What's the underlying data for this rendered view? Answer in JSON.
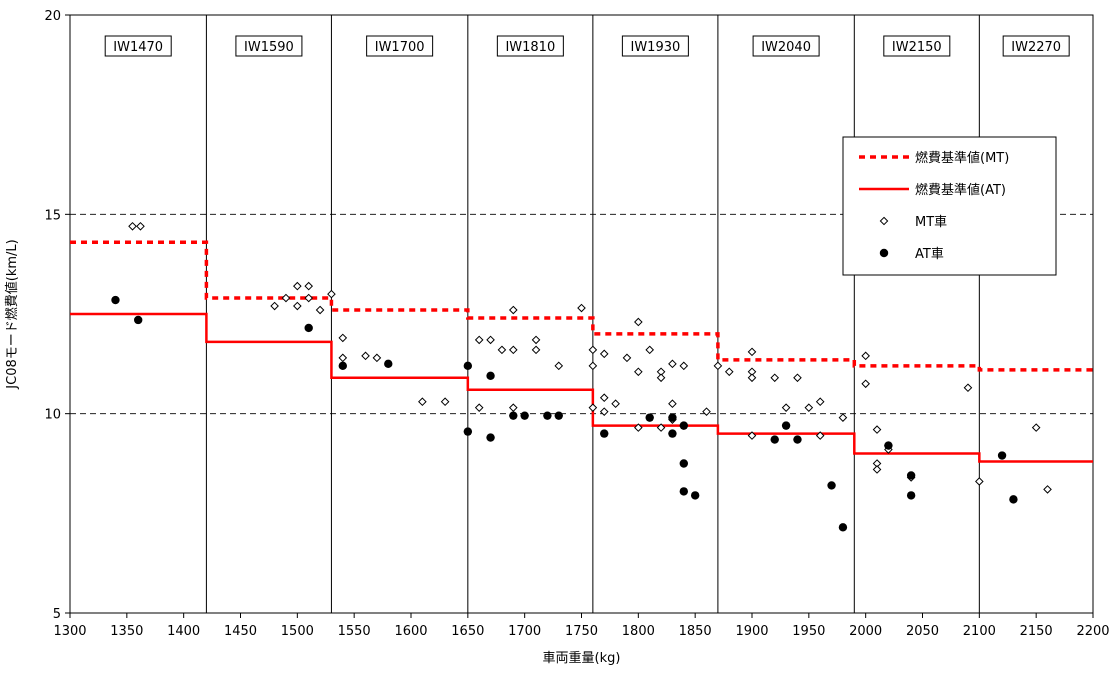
{
  "chart_data": {
    "type": "scatter",
    "xlabel": "車両重量(kg)",
    "ylabel": "JC08モード燃費値(km/L)",
    "xlim": [
      1300,
      2200
    ],
    "ylim": [
      5,
      20
    ],
    "x_ticks": [
      1300,
      1350,
      1400,
      1450,
      1500,
      1550,
      1600,
      1650,
      1700,
      1750,
      1800,
      1850,
      1900,
      1950,
      2000,
      2050,
      2100,
      2150,
      2200
    ],
    "y_ticks": [
      5,
      10,
      15,
      20
    ],
    "y_gridlines": [
      10,
      15
    ],
    "grid_style": "dashed",
    "legend_position": "right",
    "inertia_classes": [
      {
        "label": "IW1470",
        "from": 1300,
        "to": 1420
      },
      {
        "label": "IW1590",
        "from": 1420,
        "to": 1530
      },
      {
        "label": "IW1700",
        "from": 1530,
        "to": 1650
      },
      {
        "label": "IW1810",
        "from": 1650,
        "to": 1760
      },
      {
        "label": "IW1930",
        "from": 1760,
        "to": 1870
      },
      {
        "label": "IW2040",
        "from": 1870,
        "to": 1990
      },
      {
        "label": "IW2150",
        "from": 1990,
        "to": 2100
      },
      {
        "label": "IW2270",
        "from": 2100,
        "to": 2200
      }
    ],
    "series": [
      {
        "name": "燃費基準値(MT)",
        "kind": "step",
        "color": "#ff0000",
        "dash": true,
        "steps": [
          {
            "from": 1300,
            "to": 1420,
            "y": 14.3
          },
          {
            "from": 1420,
            "to": 1530,
            "y": 12.9
          },
          {
            "from": 1530,
            "to": 1650,
            "y": 12.6
          },
          {
            "from": 1650,
            "to": 1760,
            "y": 12.4
          },
          {
            "from": 1760,
            "to": 1870,
            "y": 12.0
          },
          {
            "from": 1870,
            "to": 1990,
            "y": 11.35
          },
          {
            "from": 1990,
            "to": 2100,
            "y": 11.2
          },
          {
            "from": 2100,
            "to": 2200,
            "y": 11.1
          }
        ]
      },
      {
        "name": "燃費基準値(AT)",
        "kind": "step",
        "color": "#ff0000",
        "dash": false,
        "steps": [
          {
            "from": 1300,
            "to": 1420,
            "y": 12.5
          },
          {
            "from": 1420,
            "to": 1530,
            "y": 11.8
          },
          {
            "from": 1530,
            "to": 1650,
            "y": 10.9
          },
          {
            "from": 1650,
            "to": 1760,
            "y": 10.6
          },
          {
            "from": 1760,
            "to": 1870,
            "y": 9.7
          },
          {
            "from": 1870,
            "to": 1990,
            "y": 9.5
          },
          {
            "from": 1990,
            "to": 2100,
            "y": 9.0
          },
          {
            "from": 2100,
            "to": 2200,
            "y": 8.8
          }
        ]
      },
      {
        "name": "MT車",
        "kind": "scatter",
        "marker": "diamond-open",
        "points": [
          [
            1355,
            14.7
          ],
          [
            1362,
            14.7
          ],
          [
            1480,
            12.7
          ],
          [
            1490,
            12.9
          ],
          [
            1500,
            13.2
          ],
          [
            1510,
            13.2
          ],
          [
            1500,
            12.7
          ],
          [
            1510,
            12.9
          ],
          [
            1520,
            12.6
          ],
          [
            1530,
            13.0
          ],
          [
            1540,
            11.9
          ],
          [
            1540,
            11.4
          ],
          [
            1560,
            11.45
          ],
          [
            1570,
            11.4
          ],
          [
            1610,
            10.3
          ],
          [
            1630,
            10.3
          ],
          [
            1660,
            11.85
          ],
          [
            1670,
            11.85
          ],
          [
            1680,
            11.6
          ],
          [
            1690,
            11.6
          ],
          [
            1710,
            11.6
          ],
          [
            1710,
            11.85
          ],
          [
            1690,
            12.6
          ],
          [
            1660,
            10.15
          ],
          [
            1690,
            10.15
          ],
          [
            1730,
            11.2
          ],
          [
            1750,
            12.65
          ],
          [
            1760,
            11.6
          ],
          [
            1760,
            11.2
          ],
          [
            1770,
            11.5
          ],
          [
            1770,
            10.4
          ],
          [
            1780,
            10.25
          ],
          [
            1770,
            10.05
          ],
          [
            1760,
            10.15
          ],
          [
            1790,
            11.4
          ],
          [
            1800,
            11.05
          ],
          [
            1800,
            12.3
          ],
          [
            1800,
            9.65
          ],
          [
            1810,
            11.6
          ],
          [
            1820,
            11.05
          ],
          [
            1820,
            10.9
          ],
          [
            1830,
            11.25
          ],
          [
            1820,
            9.65
          ],
          [
            1830,
            10.25
          ],
          [
            1830,
            9.85
          ],
          [
            1840,
            11.2
          ],
          [
            1840,
            9.7
          ],
          [
            1860,
            10.05
          ],
          [
            1870,
            11.2
          ],
          [
            1880,
            11.05
          ],
          [
            1900,
            11.55
          ],
          [
            1900,
            11.05
          ],
          [
            1900,
            10.9
          ],
          [
            1900,
            9.45
          ],
          [
            1920,
            10.9
          ],
          [
            1930,
            10.15
          ],
          [
            1940,
            10.9
          ],
          [
            1950,
            10.15
          ],
          [
            1960,
            10.3
          ],
          [
            1960,
            9.45
          ],
          [
            1980,
            9.9
          ],
          [
            2000,
            11.45
          ],
          [
            2000,
            10.75
          ],
          [
            2010,
            9.6
          ],
          [
            2010,
            8.75
          ],
          [
            2010,
            8.6
          ],
          [
            2020,
            9.2
          ],
          [
            2020,
            9.1
          ],
          [
            2040,
            8.4
          ],
          [
            2090,
            10.65
          ],
          [
            2100,
            8.3
          ],
          [
            2150,
            9.65
          ],
          [
            2160,
            8.1
          ]
        ]
      },
      {
        "name": "AT車",
        "kind": "scatter",
        "marker": "circle-filled",
        "points": [
          [
            1340,
            12.85
          ],
          [
            1360,
            12.35
          ],
          [
            1510,
            12.15
          ],
          [
            1540,
            11.2
          ],
          [
            1580,
            11.25
          ],
          [
            1650,
            11.2
          ],
          [
            1650,
            9.55
          ],
          [
            1670,
            10.95
          ],
          [
            1670,
            9.4
          ],
          [
            1690,
            9.95
          ],
          [
            1700,
            9.95
          ],
          [
            1720,
            9.95
          ],
          [
            1730,
            9.95
          ],
          [
            1770,
            9.5
          ],
          [
            1810,
            9.9
          ],
          [
            1830,
            9.9
          ],
          [
            1830,
            9.5
          ],
          [
            1840,
            9.7
          ],
          [
            1840,
            8.75
          ],
          [
            1840,
            8.05
          ],
          [
            1850,
            7.95
          ],
          [
            1920,
            9.35
          ],
          [
            1930,
            9.7
          ],
          [
            1940,
            9.35
          ],
          [
            1970,
            8.2
          ],
          [
            1980,
            7.15
          ],
          [
            2020,
            9.2
          ],
          [
            2040,
            8.45
          ],
          [
            2040,
            7.95
          ],
          [
            2120,
            8.95
          ],
          [
            2130,
            7.85
          ]
        ]
      }
    ]
  }
}
